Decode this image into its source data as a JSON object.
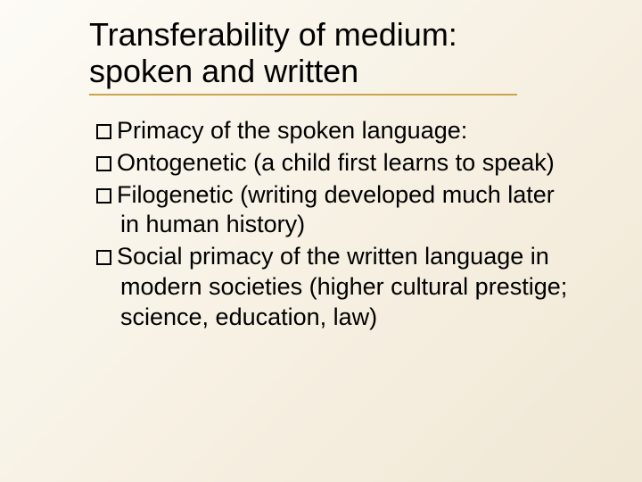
{
  "slide": {
    "title_line1": "Transferability of medium:",
    "title_line2": "spoken and written",
    "bullets": [
      "Primacy of the spoken language:",
      "Ontogenetic (a child first learns to speak)",
      "Filogenetic (writing developed much later in human history)",
      "Social primacy of the written language in modern societies (higher cultural prestige; science, education, law)"
    ]
  },
  "style": {
    "background_gradient": [
      "#fdfbf6",
      "#f7f1e4",
      "#f0e7d4"
    ],
    "accent_underline_color": "#c9a64a",
    "title_fontsize": 36,
    "body_fontsize": 27,
    "text_color": "#000000",
    "bullet_marker": "hollow-square",
    "font_family": "Arial"
  }
}
